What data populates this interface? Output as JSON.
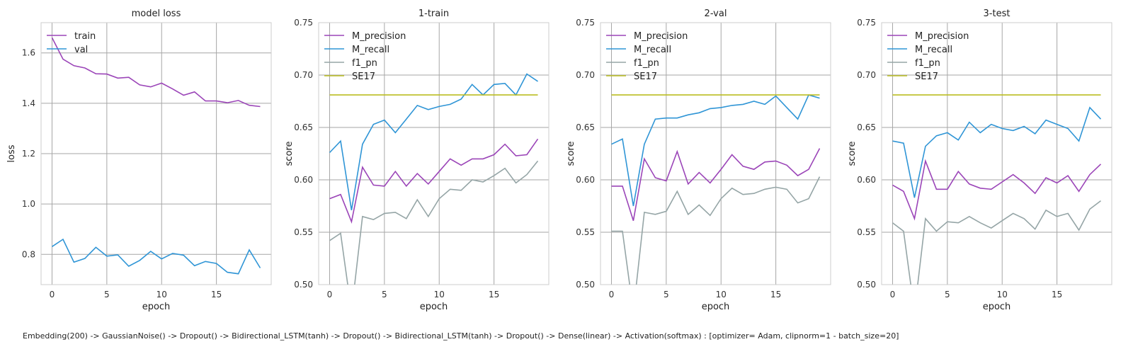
{
  "chart_data": [
    {
      "type": "line",
      "title": "model loss",
      "xlabel": "epoch",
      "ylabel": "loss",
      "xlim": [
        -1,
        20
      ],
      "ylim": [
        0.68,
        1.72
      ],
      "xticks": [
        0,
        5,
        10,
        15
      ],
      "yticks": [
        0.8,
        1.0,
        1.2,
        1.4,
        1.6
      ],
      "ytick_labels": [
        "0.8",
        "1.0",
        "1.2",
        "1.4",
        "1.6"
      ],
      "legend": "top-left",
      "x": [
        0,
        1,
        2,
        3,
        4,
        5,
        6,
        7,
        8,
        9,
        10,
        11,
        12,
        13,
        14,
        15,
        16,
        17,
        18,
        19
      ],
      "series": [
        {
          "name": "train",
          "color": "#9b45b8",
          "values": [
            1.66,
            1.575,
            1.549,
            1.54,
            1.517,
            1.516,
            1.5,
            1.503,
            1.473,
            1.465,
            1.48,
            1.457,
            1.432,
            1.445,
            1.409,
            1.409,
            1.402,
            1.411,
            1.392,
            1.387
          ]
        },
        {
          "name": "val",
          "color": "#2f95d6",
          "values": [
            0.831,
            0.86,
            0.769,
            0.784,
            0.828,
            0.793,
            0.798,
            0.753,
            0.776,
            0.812,
            0.782,
            0.804,
            0.797,
            0.755,
            0.772,
            0.764,
            0.729,
            0.723,
            0.818,
            0.746
          ]
        }
      ]
    },
    {
      "type": "line",
      "title": "1-train",
      "xlabel": "epoch",
      "ylabel": "score",
      "xlim": [
        -1,
        20
      ],
      "ylim": [
        0.5,
        0.75
      ],
      "xticks": [
        0,
        5,
        10,
        15
      ],
      "yticks": [
        0.5,
        0.55,
        0.6,
        0.65,
        0.7,
        0.75
      ],
      "ytick_labels": [
        "0.50",
        "0.55",
        "0.60",
        "0.65",
        "0.70",
        "0.75"
      ],
      "legend": "top-left",
      "x": [
        0,
        1,
        2,
        3,
        4,
        5,
        6,
        7,
        8,
        9,
        10,
        11,
        12,
        13,
        14,
        15,
        16,
        17,
        18,
        19
      ],
      "series": [
        {
          "name": "M_precision",
          "color": "#9b45b8",
          "values": [
            0.582,
            0.586,
            0.56,
            0.612,
            0.595,
            0.594,
            0.608,
            0.594,
            0.606,
            0.596,
            0.608,
            0.62,
            0.614,
            0.62,
            0.62,
            0.624,
            0.634,
            0.623,
            0.624,
            0.639
          ]
        },
        {
          "name": "M_recall",
          "color": "#2f95d6",
          "values": [
            0.626,
            0.637,
            0.571,
            0.634,
            0.653,
            0.657,
            0.645,
            0.658,
            0.671,
            0.667,
            0.67,
            0.672,
            0.677,
            0.691,
            0.681,
            0.691,
            0.692,
            0.681,
            0.701,
            0.694
          ]
        },
        {
          "name": "f1_pn",
          "color": "#95a5a6",
          "values": [
            0.542,
            0.549,
            0.474,
            0.565,
            0.562,
            0.568,
            0.569,
            0.563,
            0.581,
            0.565,
            0.582,
            0.591,
            0.59,
            0.6,
            0.598,
            0.604,
            0.611,
            0.597,
            0.605,
            0.618
          ]
        },
        {
          "name": "SE17",
          "color": "#bcbd22",
          "values": [
            0.681,
            0.681,
            0.681,
            0.681,
            0.681,
            0.681,
            0.681,
            0.681,
            0.681,
            0.681,
            0.681,
            0.681,
            0.681,
            0.681,
            0.681,
            0.681,
            0.681,
            0.681,
            0.681,
            0.681
          ]
        }
      ]
    },
    {
      "type": "line",
      "title": "2-val",
      "xlabel": "epoch",
      "ylabel": "score",
      "xlim": [
        -1,
        20
      ],
      "ylim": [
        0.5,
        0.75
      ],
      "xticks": [
        0,
        5,
        10,
        15
      ],
      "yticks": [
        0.5,
        0.55,
        0.6,
        0.65,
        0.7,
        0.75
      ],
      "ytick_labels": [
        "0.50",
        "0.55",
        "0.60",
        "0.65",
        "0.70",
        "0.75"
      ],
      "legend": "top-left",
      "x": [
        0,
        1,
        2,
        3,
        4,
        5,
        6,
        7,
        8,
        9,
        10,
        11,
        12,
        13,
        14,
        15,
        16,
        17,
        18,
        19
      ],
      "series": [
        {
          "name": "M_precision",
          "color": "#9b45b8",
          "values": [
            0.594,
            0.594,
            0.561,
            0.62,
            0.602,
            0.599,
            0.627,
            0.596,
            0.607,
            0.597,
            0.61,
            0.624,
            0.613,
            0.61,
            0.617,
            0.618,
            0.614,
            0.604,
            0.61,
            0.63
          ]
        },
        {
          "name": "M_recall",
          "color": "#2f95d6",
          "values": [
            0.634,
            0.639,
            0.575,
            0.634,
            0.658,
            0.659,
            0.659,
            0.662,
            0.664,
            0.668,
            0.669,
            0.671,
            0.672,
            0.675,
            0.672,
            0.68,
            0.669,
            0.658,
            0.681,
            0.678
          ]
        },
        {
          "name": "f1_pn",
          "color": "#95a5a6",
          "values": [
            0.551,
            0.551,
            0.474,
            0.569,
            0.567,
            0.57,
            0.589,
            0.567,
            0.576,
            0.566,
            0.582,
            0.592,
            0.586,
            0.587,
            0.591,
            0.593,
            0.591,
            0.578,
            0.582,
            0.603
          ]
        },
        {
          "name": "SE17",
          "color": "#bcbd22",
          "values": [
            0.681,
            0.681,
            0.681,
            0.681,
            0.681,
            0.681,
            0.681,
            0.681,
            0.681,
            0.681,
            0.681,
            0.681,
            0.681,
            0.681,
            0.681,
            0.681,
            0.681,
            0.681,
            0.681,
            0.681
          ]
        }
      ]
    },
    {
      "type": "line",
      "title": "3-test",
      "xlabel": "epoch",
      "ylabel": "score",
      "xlim": [
        -1,
        20
      ],
      "ylim": [
        0.5,
        0.75
      ],
      "xticks": [
        0,
        5,
        10,
        15
      ],
      "yticks": [
        0.5,
        0.55,
        0.6,
        0.65,
        0.7,
        0.75
      ],
      "ytick_labels": [
        "0.50",
        "0.55",
        "0.60",
        "0.65",
        "0.70",
        "0.75"
      ],
      "legend": "top-left",
      "x": [
        0,
        1,
        2,
        3,
        4,
        5,
        6,
        7,
        8,
        9,
        10,
        11,
        12,
        13,
        14,
        15,
        16,
        17,
        18,
        19
      ],
      "series": [
        {
          "name": "M_precision",
          "color": "#9b45b8",
          "values": [
            0.595,
            0.589,
            0.563,
            0.618,
            0.591,
            0.591,
            0.608,
            0.596,
            0.592,
            0.591,
            0.598,
            0.605,
            0.597,
            0.587,
            0.602,
            0.597,
            0.604,
            0.589,
            0.605,
            0.615
          ]
        },
        {
          "name": "M_recall",
          "color": "#2f95d6",
          "values": [
            0.637,
            0.635,
            0.583,
            0.632,
            0.642,
            0.645,
            0.638,
            0.655,
            0.645,
            0.653,
            0.649,
            0.647,
            0.651,
            0.644,
            0.657,
            0.653,
            0.649,
            0.637,
            0.669,
            0.658
          ]
        },
        {
          "name": "f1_pn",
          "color": "#95a5a6",
          "values": [
            0.559,
            0.551,
            0.474,
            0.563,
            0.551,
            0.56,
            0.559,
            0.565,
            0.559,
            0.554,
            0.561,
            0.568,
            0.563,
            0.553,
            0.571,
            0.565,
            0.568,
            0.552,
            0.572,
            0.58
          ]
        },
        {
          "name": "SE17",
          "color": "#bcbd22",
          "values": [
            0.681,
            0.681,
            0.681,
            0.681,
            0.681,
            0.681,
            0.681,
            0.681,
            0.681,
            0.681,
            0.681,
            0.681,
            0.681,
            0.681,
            0.681,
            0.681,
            0.681,
            0.681,
            0.681,
            0.681
          ]
        }
      ]
    }
  ],
  "caption": "Embedding(200) -> GaussianNoise() -> Dropout() -> Bidirectional_LSTM(tanh) -> Dropout() -> Bidirectional_LSTM(tanh) -> Dropout() -> Dense(linear) -> Activation(softmax) : [optimizer= Adam, clipnorm=1 - batch_size=20]"
}
